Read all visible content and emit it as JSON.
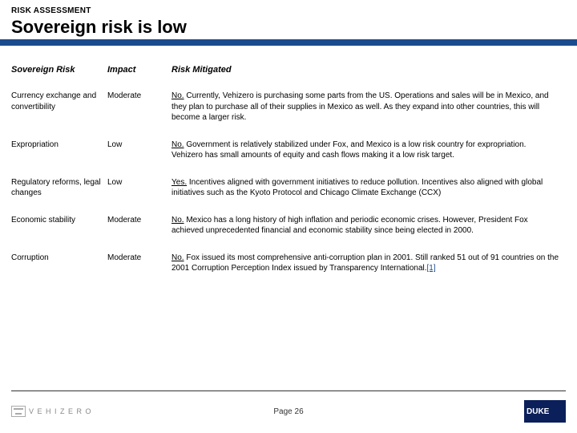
{
  "header": {
    "kicker": "RISK ASSESSMENT",
    "title": "Sovereign risk is low",
    "underline_color": "#1a4b8c"
  },
  "columns": {
    "col1": "Sovereign Risk",
    "col2": "Impact",
    "col3": "Risk Mitigated"
  },
  "rows": [
    {
      "category": "Currency exchange and convertibility",
      "impact": "Moderate",
      "answer": "No.",
      "detail": " Currently, Vehizero is purchasing some parts from the US. Operations and sales will be in Mexico, and they plan to purchase all of their supplies in Mexico as well. As they expand into other countries, this will become a larger risk."
    },
    {
      "category": "Expropriation",
      "impact": "Low",
      "answer": "No.",
      "detail": " Government is relatively stabilized under Fox, and Mexico is a low risk country for expropriation. Vehizero has small amounts of equity and cash flows making it a low risk target."
    },
    {
      "category": "Regulatory reforms, legal changes",
      "impact": "Low",
      "answer": "Yes.",
      "detail": " Incentives aligned with government initiatives to reduce pollution. Incentives also aligned with global initiatives such as the Kyoto Protocol and Chicago Climate Exchange (CCX)"
    },
    {
      "category": "Economic stability",
      "impact": "Moderate",
      "answer": "No.",
      "detail": " Mexico has a long history of high inflation and periodic economic crises. However, President Fox achieved unprecedented financial and economic stability since being elected in 2000."
    },
    {
      "category": "Corruption",
      "impact": "Moderate",
      "answer": "No.",
      "detail": " Fox issued its most comprehensive anti-corruption plan in 2001. Still ranked 51 out of 91 countries on the 2001 Corruption Perception Index issued by Transparency International.",
      "citation": "[1]"
    }
  ],
  "footer": {
    "left_brand": "V E H I Z E R O",
    "page_label": "Page",
    "page_number": "26",
    "right_brand_top": "DUKE"
  }
}
